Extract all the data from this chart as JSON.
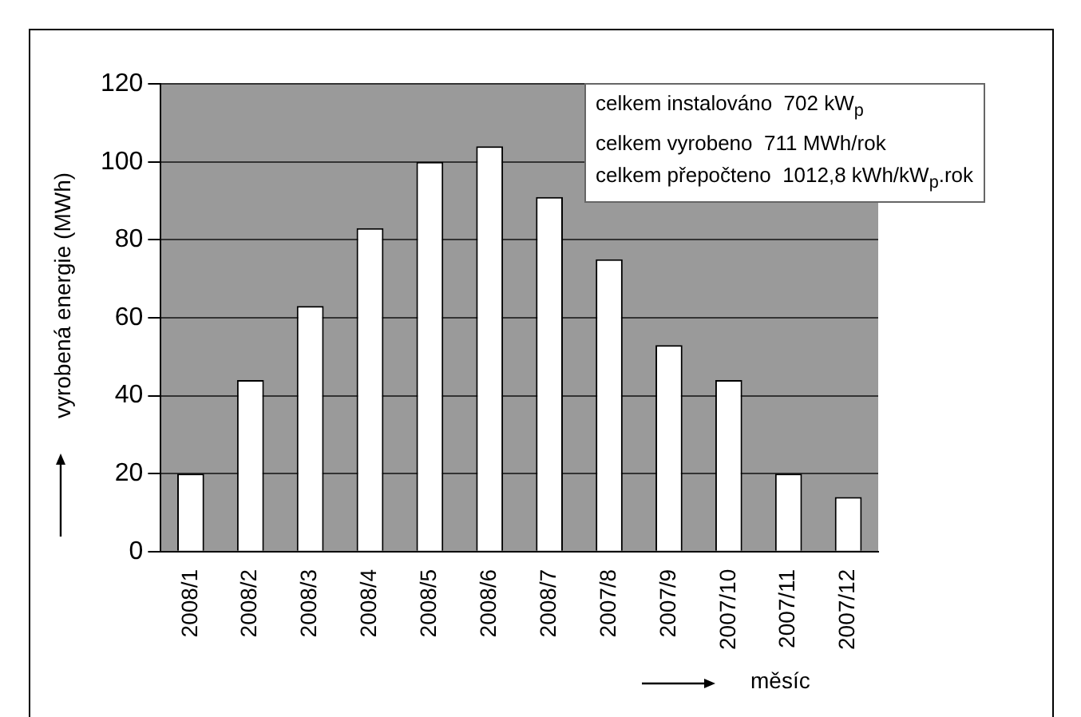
{
  "chart_data": {
    "type": "bar",
    "xlabel": "měsíc",
    "ylabel": "vyrobená energie  (MWh)",
    "categories": [
      "2008/1",
      "2008/2",
      "2008/3",
      "2008/4",
      "2008/5",
      "2008/6",
      "2008/7",
      "2007/8",
      "2007/9",
      "2007/10",
      "2007/11",
      "2007/12"
    ],
    "values": [
      20,
      44,
      63,
      83,
      100,
      104,
      91,
      75,
      53,
      44,
      20,
      14
    ],
    "color": "#ffffff",
    "ylim": [
      0,
      120
    ],
    "yticks": [
      0,
      20,
      40,
      60,
      80,
      100,
      120
    ],
    "grid": "y",
    "legend": false,
    "annotations": [
      "celkem instalováno  702 kW$_{p}$",
      "celkem vyrobeno  711 MWh/rok",
      "celkem přepočteno  1012,8 kWh/kW$_{p}$.rok"
    ]
  }
}
